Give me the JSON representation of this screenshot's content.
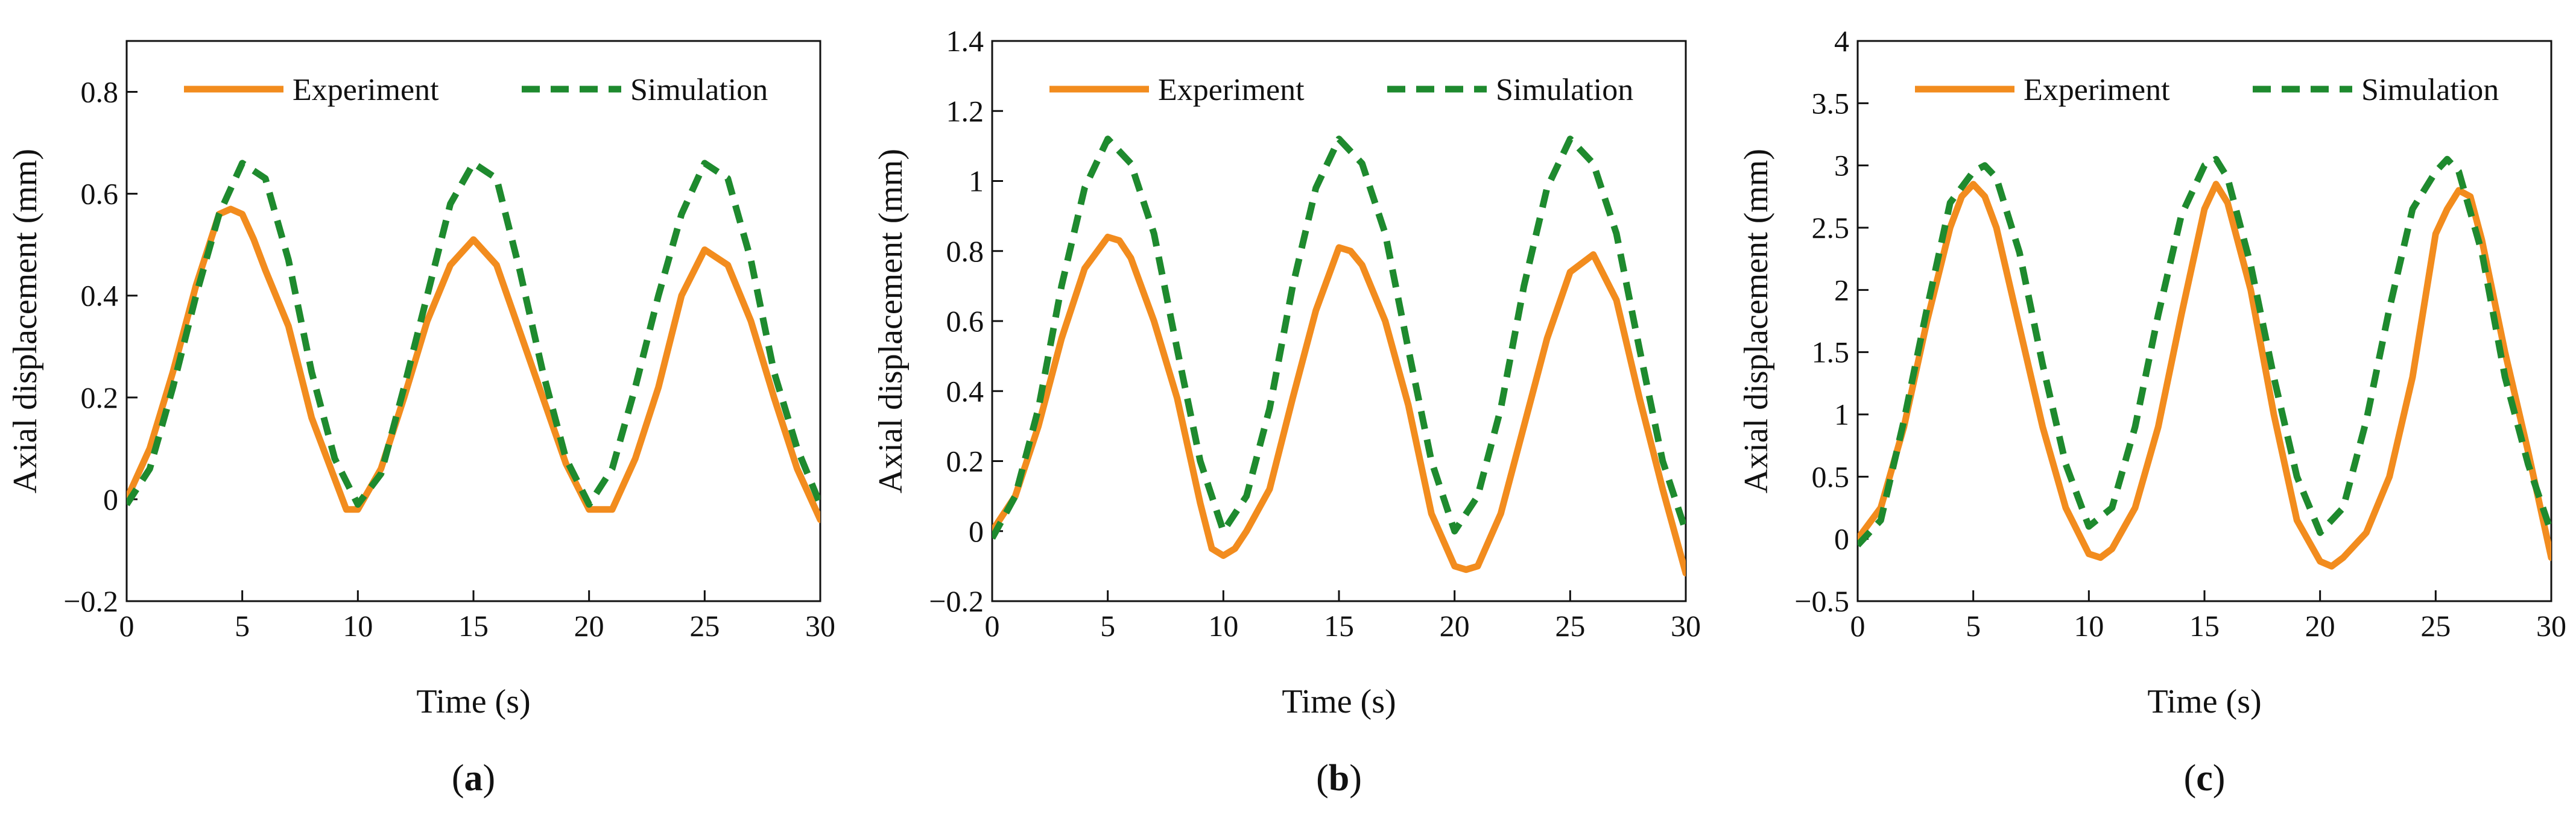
{
  "colors": {
    "experiment": "#F28C1E",
    "simulation": "#1E8A2E",
    "axis": "#111111"
  },
  "chart_data": [
    {
      "type": "line",
      "panel_label": "(a)",
      "panel_letter": "a",
      "xlabel": "Time (s)",
      "ylabel": "Axial displacement (mm)",
      "xlim": [
        0,
        30
      ],
      "ylim": [
        -0.2,
        0.9
      ],
      "xticks": [
        0,
        5,
        10,
        15,
        20,
        25,
        30
      ],
      "yticks": [
        -0.2,
        0,
        0.2,
        0.4,
        0.6,
        0.8
      ],
      "ytick_labels": [
        "−0.2",
        "0",
        "0.2",
        "0.4",
        "0.6",
        "0.8"
      ],
      "grid": false,
      "legend_position": "top",
      "series": [
        {
          "name": "Experiment",
          "style": "solid",
          "x": [
            0,
            1,
            2,
            3,
            4,
            4.5,
            5,
            5.5,
            6,
            7,
            8,
            9,
            9.5,
            10,
            11,
            12,
            13,
            14,
            15,
            16,
            17,
            18,
            19,
            20,
            21,
            22,
            23,
            24,
            25,
            26,
            27,
            28,
            29,
            30
          ],
          "y": [
            0.0,
            0.1,
            0.25,
            0.42,
            0.56,
            0.57,
            0.56,
            0.51,
            0.45,
            0.34,
            0.16,
            0.04,
            -0.02,
            -0.02,
            0.06,
            0.2,
            0.35,
            0.46,
            0.51,
            0.46,
            0.33,
            0.2,
            0.07,
            -0.02,
            -0.02,
            0.08,
            0.22,
            0.4,
            0.49,
            0.46,
            0.35,
            0.2,
            0.06,
            -0.04
          ]
        },
        {
          "name": "Simulation",
          "style": "dashed",
          "x": [
            0,
            1,
            2,
            3,
            4,
            5,
            6,
            7,
            8,
            9,
            10,
            11,
            12,
            13,
            14,
            15,
            16,
            17,
            18,
            19,
            20,
            21,
            22,
            23,
            24,
            25,
            26,
            27,
            28,
            29,
            30
          ],
          "y": [
            -0.01,
            0.06,
            0.22,
            0.4,
            0.56,
            0.66,
            0.63,
            0.47,
            0.25,
            0.08,
            -0.01,
            0.05,
            0.22,
            0.4,
            0.58,
            0.66,
            0.63,
            0.45,
            0.25,
            0.08,
            -0.01,
            0.06,
            0.22,
            0.4,
            0.56,
            0.66,
            0.63,
            0.47,
            0.25,
            0.1,
            -0.01
          ]
        }
      ]
    },
    {
      "type": "line",
      "panel_label": "(b)",
      "panel_letter": "b",
      "xlabel": "Time (s)",
      "ylabel": "Axial displacement (mm)",
      "xlim": [
        0,
        30
      ],
      "ylim": [
        -0.2,
        1.4
      ],
      "xticks": [
        0,
        5,
        10,
        15,
        20,
        25,
        30
      ],
      "yticks": [
        -0.2,
        0,
        0.2,
        0.4,
        0.6,
        0.8,
        1.0,
        1.2,
        1.4
      ],
      "ytick_labels": [
        "−0.2",
        "0",
        "0.2",
        "0.4",
        "0.6",
        "0.8",
        "1",
        "1.2",
        "1.4"
      ],
      "grid": false,
      "legend_position": "top",
      "series": [
        {
          "name": "Experiment",
          "style": "solid",
          "x": [
            0,
            1,
            2,
            3,
            4,
            5,
            5.5,
            6,
            7,
            8,
            9,
            9.5,
            10,
            10.5,
            11,
            12,
            13,
            14,
            15,
            15.5,
            16,
            17,
            18,
            19,
            20,
            20.5,
            21,
            22,
            23,
            24,
            25,
            26,
            27,
            28,
            29,
            30
          ],
          "y": [
            0.0,
            0.1,
            0.3,
            0.55,
            0.75,
            0.84,
            0.83,
            0.78,
            0.6,
            0.38,
            0.08,
            -0.05,
            -0.07,
            -0.05,
            0.0,
            0.12,
            0.38,
            0.63,
            0.81,
            0.8,
            0.76,
            0.6,
            0.36,
            0.05,
            -0.1,
            -0.11,
            -0.1,
            0.05,
            0.3,
            0.55,
            0.74,
            0.79,
            0.66,
            0.38,
            0.12,
            -0.12
          ]
        },
        {
          "name": "Simulation",
          "style": "dashed",
          "x": [
            0,
            1,
            2,
            3,
            4,
            5,
            6,
            7,
            8,
            9,
            10,
            11,
            12,
            13,
            14,
            15,
            16,
            17,
            18,
            19,
            20,
            21,
            22,
            23,
            24,
            25,
            26,
            27,
            28,
            29,
            30
          ],
          "y": [
            -0.02,
            0.1,
            0.35,
            0.7,
            0.98,
            1.12,
            1.05,
            0.85,
            0.52,
            0.2,
            0.0,
            0.1,
            0.35,
            0.7,
            0.98,
            1.12,
            1.05,
            0.85,
            0.52,
            0.2,
            0.0,
            0.1,
            0.35,
            0.7,
            0.98,
            1.12,
            1.05,
            0.85,
            0.52,
            0.2,
            0.0
          ]
        }
      ]
    },
    {
      "type": "line",
      "panel_label": "(c)",
      "panel_letter": "c",
      "xlabel": "Time (s)",
      "ylabel": "Axial displacement (mm)",
      "xlim": [
        0,
        30
      ],
      "ylim": [
        -0.5,
        4.0
      ],
      "xticks": [
        0,
        5,
        10,
        15,
        20,
        25,
        30
      ],
      "yticks": [
        -0.5,
        0,
        0.5,
        1.0,
        1.5,
        2.0,
        2.5,
        3.0,
        3.5,
        4.0
      ],
      "ytick_labels": [
        "−0.5",
        "0",
        "0.5",
        "1",
        "1.5",
        "2",
        "2.5",
        "3",
        "3.5",
        "4"
      ],
      "grid": false,
      "legend_position": "top",
      "series": [
        {
          "name": "Experiment",
          "style": "solid",
          "x": [
            0,
            1,
            2,
            3,
            4,
            4.5,
            5,
            5.5,
            6,
            7,
            8,
            9,
            10,
            10.5,
            11,
            12,
            13,
            14,
            15,
            15.5,
            16,
            17,
            18,
            19,
            20,
            20.5,
            21,
            22,
            23,
            24,
            25,
            25.5,
            26,
            26.5,
            27,
            28,
            29,
            30
          ],
          "y": [
            0.0,
            0.25,
            0.9,
            1.75,
            2.5,
            2.75,
            2.85,
            2.75,
            2.5,
            1.7,
            0.9,
            0.25,
            -0.12,
            -0.15,
            -0.08,
            0.25,
            0.9,
            1.8,
            2.65,
            2.85,
            2.7,
            2.0,
            1.0,
            0.15,
            -0.18,
            -0.22,
            -0.15,
            0.05,
            0.5,
            1.3,
            2.45,
            2.65,
            2.8,
            2.75,
            2.4,
            1.5,
            0.7,
            -0.15
          ]
        },
        {
          "name": "Simulation",
          "style": "dashed",
          "x": [
            0,
            1,
            2,
            3,
            4,
            5,
            5.5,
            6,
            7,
            8,
            9,
            10,
            11,
            12,
            13,
            14,
            15,
            15.5,
            16,
            17,
            18,
            19,
            20,
            21,
            22,
            23,
            24,
            25,
            25.5,
            26,
            27,
            28,
            29,
            30
          ],
          "y": [
            -0.05,
            0.15,
            0.95,
            1.85,
            2.7,
            2.95,
            3.0,
            2.9,
            2.3,
            1.4,
            0.6,
            0.1,
            0.25,
            0.9,
            1.8,
            2.6,
            3.0,
            3.05,
            2.9,
            2.2,
            1.3,
            0.5,
            0.05,
            0.25,
            0.95,
            1.85,
            2.65,
            2.95,
            3.05,
            2.95,
            2.3,
            1.3,
            0.6,
            0.05
          ]
        }
      ]
    }
  ]
}
